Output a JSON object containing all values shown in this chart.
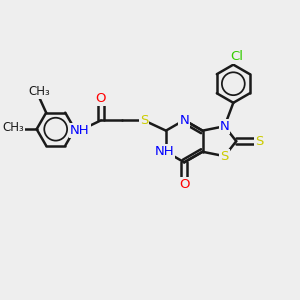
{
  "background_color": "#eeeeee",
  "bond_color": "#1a1a1a",
  "bond_width": 1.8,
  "N_color": "#0000ff",
  "O_color": "#ff0000",
  "S_color": "#cccc00",
  "Cl_color": "#33cc00",
  "figsize": [
    3.0,
    3.0
  ],
  "dpi": 100,
  "xlim": [
    0,
    10
  ],
  "ylim": [
    0,
    10
  ]
}
